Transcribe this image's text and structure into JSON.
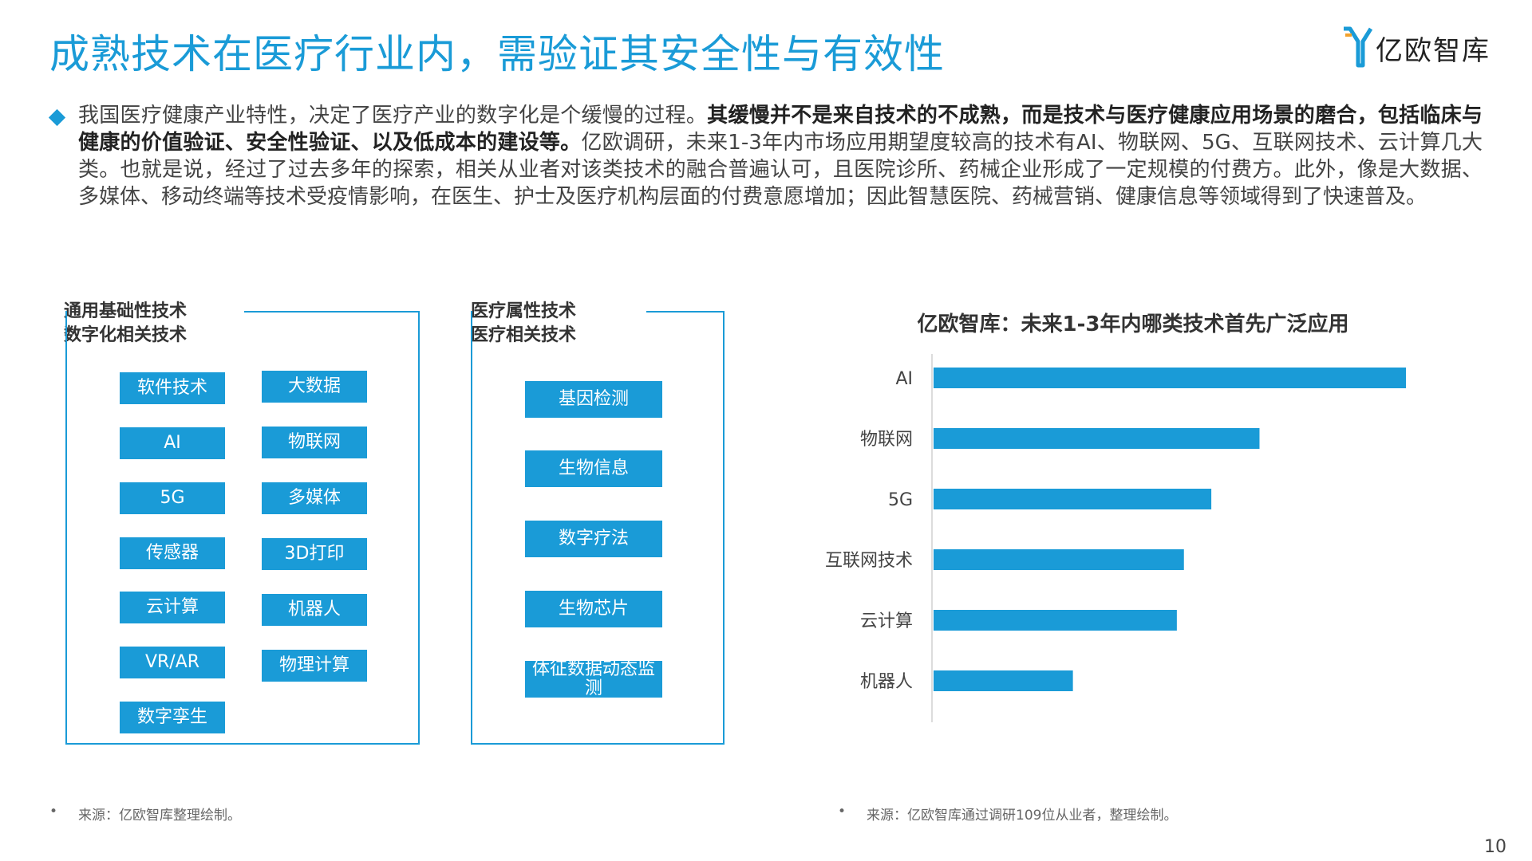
{
  "title": "成熟技术在医疗行业内，需验证其安全性与有效性",
  "logo": {
    "text": "亿欧智库",
    "icon": "yiou-logo-icon",
    "accent": "#1a9bd7"
  },
  "intro": {
    "p1": "我国医疗健康产业特性，决定了医疗产业的数字化是个缓慢的过程。",
    "p2_bold": "其缓慢并不是来自技术的不成熟，而是技术与医疗健康应用场景的磨合，包括临床与健康的价值验证、安全性验证、以及低成本的建设等。",
    "p3": "亿欧调研，未来1-3年内市场应用期望度较高的技术有AI、物联网、5G、互联网技术、云计算几大类。也就是说，经过了过去多年的探索，相关从业者对该类技术的融合普遍认可，且医院诊所、药械企业形成了一定规模的付费方。此外，像是大数据、多媒体、移动终端等技术受疫情影响，在医生、护士及医疗机构层面的付费意愿增加；因此智慧医院、药械营销、健康信息等领域得到了快速普及。"
  },
  "panel_general": {
    "heading_line1": "通用基础性技术",
    "heading_line2": "数字化相关技术",
    "col1": [
      "软件技术",
      "AI",
      "5G",
      "传感器",
      "云计算",
      "VR/AR",
      "数字孪生"
    ],
    "col2": [
      "大数据",
      "物联网",
      "多媒体",
      "3D打印",
      "机器人",
      "物理计算"
    ]
  },
  "panel_medical": {
    "heading_line1": "医疗属性技术",
    "heading_line2": "医疗相关技术",
    "items": [
      "基因检测",
      "生物信息",
      "数字疗法",
      "生物芯片",
      "体征数据动态监测"
    ]
  },
  "chart_data": {
    "type": "bar",
    "orientation": "horizontal",
    "title": "亿欧智库：未来1-3年内哪类技术首先广泛应用",
    "categories": [
      "AI",
      "物联网",
      "5G",
      "互联网技术",
      "云计算",
      "机器人"
    ],
    "values": [
      100,
      69,
      58.8,
      53,
      51.5,
      29.5
    ],
    "color": "#1a9bd7",
    "xlim": [
      0,
      100
    ],
    "grid": false,
    "legend": "none"
  },
  "source_left": {
    "bullet": "•",
    "text": "来源：亿欧智库整理绘制。"
  },
  "source_right": {
    "bullet": "•",
    "text": "来源：亿欧智库通过调研109位从业者，整理绘制。"
  },
  "page_number": "10"
}
